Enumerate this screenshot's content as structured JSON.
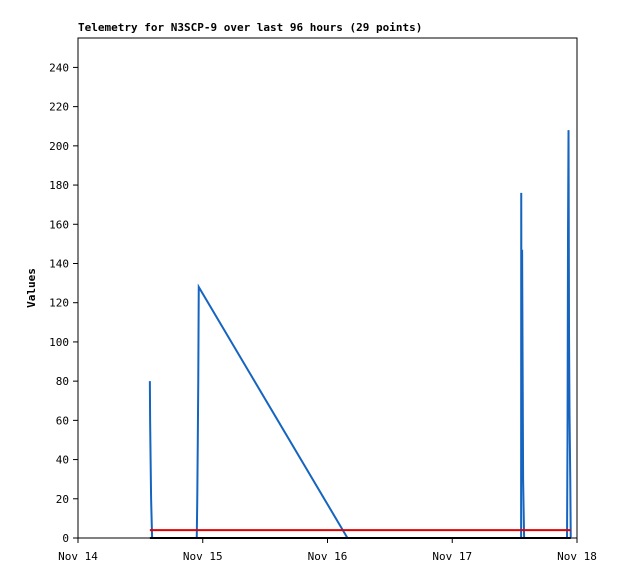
{
  "chart_data": {
    "type": "line",
    "title": "Telemetry for N3SCP-9 over last 96 hours (29 points)",
    "y_label": "Values",
    "xlim": [
      0,
      4
    ],
    "xticks": [
      {
        "value": 0,
        "label": "Nov 14"
      },
      {
        "value": 1,
        "label": "Nov 15"
      },
      {
        "value": 2,
        "label": "Nov 16"
      },
      {
        "value": 3,
        "label": "Nov 17"
      },
      {
        "value": 4,
        "label": "Nov 18"
      }
    ],
    "ylim": [
      0,
      255
    ],
    "yticks": [
      0,
      20,
      40,
      60,
      80,
      100,
      120,
      140,
      160,
      180,
      200,
      220,
      240
    ],
    "series": [
      {
        "color": "#1565c0",
        "x": [
          0.576,
          0.578,
          0.582,
          0.586,
          0.594,
          0.952,
          0.956,
          0.96,
          0.964,
          0.968,
          2.16,
          2.6,
          3.0,
          3.552,
          3.553,
          3.556,
          3.56,
          3.564,
          3.568,
          3.576,
          3.9,
          3.92,
          3.924,
          3.928,
          3.932,
          3.936,
          3.94,
          3.946,
          3.95
        ],
        "values": [
          80,
          60,
          40,
          20,
          0,
          0,
          20,
          48,
          80,
          128,
          0,
          0,
          0,
          0,
          176,
          30,
          147,
          88,
          30,
          0,
          0,
          0,
          52,
          156,
          208,
          104,
          64,
          30,
          0
        ]
      },
      {
        "color": "#e00000",
        "x": [
          0.576,
          3.95
        ],
        "values": [
          4,
          4
        ]
      },
      {
        "color": "#000000",
        "x": [
          0.576,
          3.95
        ],
        "values": [
          0,
          0
        ]
      }
    ]
  }
}
